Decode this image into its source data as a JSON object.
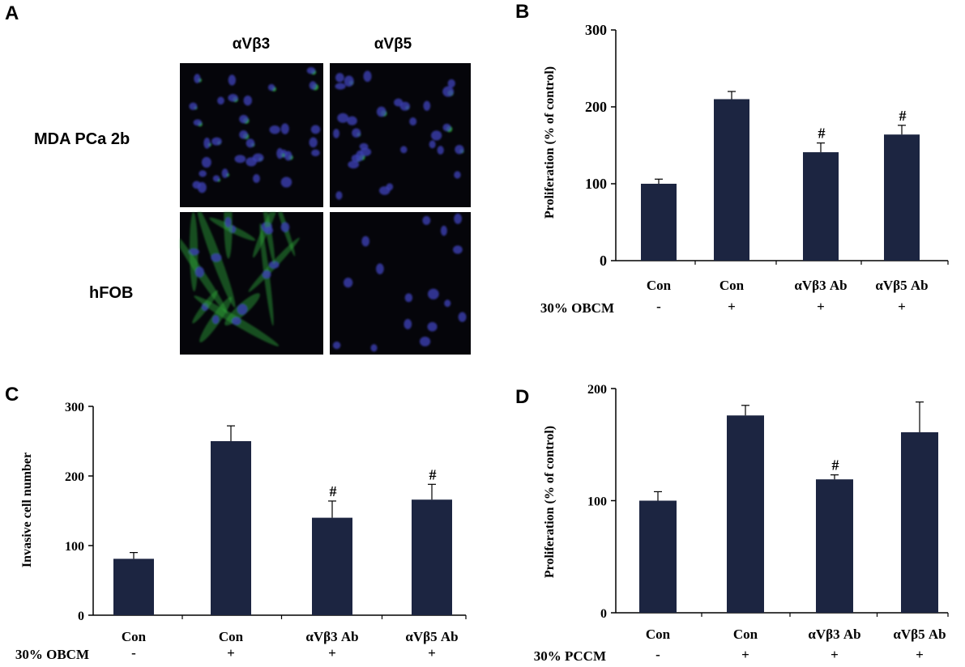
{
  "panel_a": {
    "letter": "A",
    "columns": [
      "αVβ3",
      "αVβ5"
    ],
    "rows": [
      "MDA PCa 2b",
      "hFOB"
    ],
    "accent_colors": {
      "nucleus": "#3b3fb0",
      "integrin": "#2fa83a",
      "background": "#05050a"
    }
  },
  "chart_data": [
    {
      "panel": "B",
      "type": "bar",
      "ylabel": "Proliferation (% of control)",
      "ylim": [
        0,
        300
      ],
      "yticks": [
        "0",
        "100",
        "200",
        "300"
      ],
      "categories": [
        "Con",
        "Con",
        "αVβ3 Ab",
        "αVβ5 Ab"
      ],
      "values": [
        100,
        210,
        141,
        164
      ],
      "errors": [
        6,
        10,
        12,
        12
      ],
      "significance": [
        "",
        "",
        "#",
        "#"
      ],
      "condition_label": "30% OBCM",
      "condition_values": [
        "-",
        "+",
        "+",
        "+"
      ],
      "bar_color": "#1c2541"
    },
    {
      "panel": "C",
      "type": "bar",
      "ylabel": "Invasive cell number",
      "ylim": [
        0,
        300
      ],
      "yticks": [
        "0",
        "100",
        "200",
        "300"
      ],
      "categories": [
        "Con",
        "Con",
        "αVβ3 Ab",
        "αVβ5 Ab"
      ],
      "values": [
        81,
        250,
        140,
        166
      ],
      "errors": [
        9,
        22,
        24,
        22
      ],
      "significance": [
        "",
        "",
        "#",
        "#"
      ],
      "condition_label": "30% OBCM",
      "condition_values": [
        "-",
        "+",
        "+",
        "+"
      ],
      "bar_color": "#1c2541"
    },
    {
      "panel": "D",
      "type": "bar",
      "ylabel": "Proliferation (% of control)",
      "ylim": [
        0,
        200
      ],
      "yticks": [
        "0",
        "100",
        "200"
      ],
      "categories": [
        "Con",
        "Con",
        "αVβ3 Ab",
        "αVβ5 Ab"
      ],
      "values": [
        100,
        176,
        119,
        161
      ],
      "errors": [
        8,
        9,
        4,
        27
      ],
      "significance": [
        "",
        "",
        "#",
        ""
      ],
      "condition_label": "30% PCCM",
      "condition_values": [
        "-",
        "+",
        "+",
        "+"
      ],
      "bar_color": "#1c2541"
    }
  ]
}
